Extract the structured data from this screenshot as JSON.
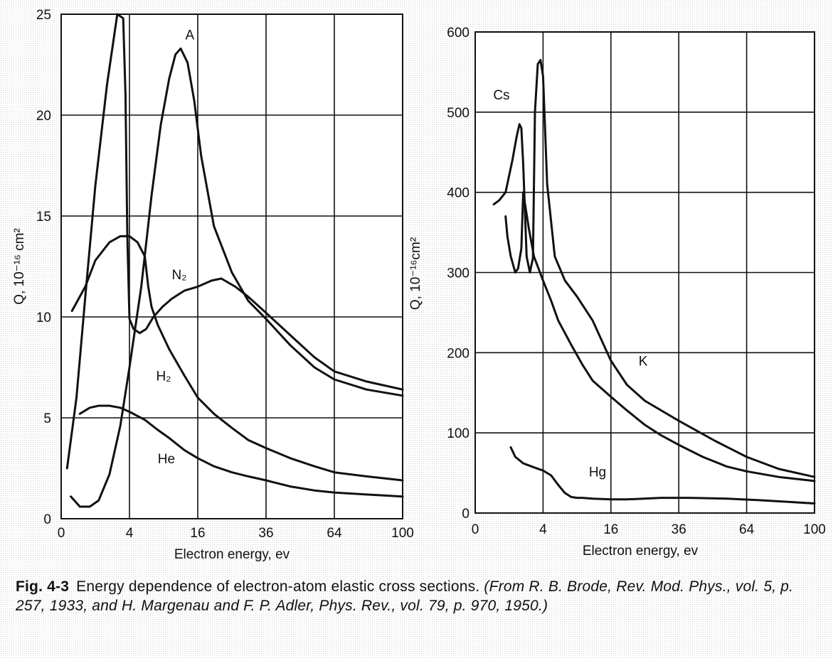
{
  "caption": {
    "number": "Fig. 4-3",
    "text": "Energy dependence of electron-atom elastic cross sections.",
    "source": "(From R. B. Brode, Rev. Mod. Phys., vol. 5, p. 257, 1933, and H. Margenau and F. P. Adler, Phys. Rev., vol. 79, p. 970, 1950.)"
  },
  "chart_data": [
    {
      "type": "line",
      "xlabel": "Electron energy, ev",
      "ylabel": "Q, 10⁻¹⁶ cm²",
      "xscale": "sqrt",
      "xlim": [
        0,
        100
      ],
      "ylim": [
        0,
        25
      ],
      "xticks": [
        0,
        4,
        16,
        36,
        64,
        100
      ],
      "xtick_labels": [
        "0",
        "4",
        "16",
        "36",
        "64",
        "100"
      ],
      "yticks": [
        0,
        5,
        10,
        15,
        20,
        25
      ],
      "ytick_labels": [
        "0",
        "5",
        "10",
        "15",
        "20",
        "25"
      ],
      "grid": true,
      "series": [
        {
          "name": "A",
          "label_at": [
            14.2,
            24.0
          ],
          "x": [
            0.08,
            0.3,
            0.7,
            1.2,
            2.0,
            3.0,
            4.0,
            5.5,
            7.0,
            8.5,
            10.0,
            11.2,
            12.25,
            13.7,
            15.2,
            16.8,
            20.0,
            25.0,
            30.0,
            36.0,
            45.0,
            55.0,
            64.0,
            80.0,
            100.0
          ],
          "y": [
            1.1,
            0.6,
            0.6,
            0.9,
            2.2,
            4.6,
            7.5,
            11.5,
            16.0,
            19.5,
            21.8,
            23.0,
            23.3,
            22.6,
            20.7,
            18.0,
            14.5,
            12.2,
            10.8,
            9.9,
            8.6,
            7.5,
            6.9,
            6.4,
            6.1
          ]
        },
        {
          "name": "N₂",
          "x": [
            0.03,
            0.2,
            0.5,
            1.0,
            1.8,
            2.7,
            3.3,
            3.55,
            3.75,
            4.0,
            4.5,
            5.3,
            6.2,
            7.3,
            8.8,
            10.5,
            13.0,
            16.0,
            19.4,
            22.0,
            26.0,
            30.0,
            36.0,
            45.0,
            55.0,
            64.0,
            80.0,
            100.0
          ],
          "y": [
            2.5,
            6.0,
            11.0,
            16.5,
            21.5,
            25.0,
            24.8,
            21.0,
            14.0,
            9.9,
            9.4,
            9.2,
            9.4,
            10.0,
            10.5,
            10.9,
            11.3,
            11.5,
            11.8,
            11.9,
            11.5,
            11.0,
            10.2,
            9.1,
            8.0,
            7.3,
            6.8,
            6.4
          ]
        },
        {
          "name": "H₂",
          "label_at": [
            9.0,
            7.1
          ],
          "x": [
            0.1,
            0.5,
            1.0,
            2.0,
            3.0,
            4.0,
            5.0,
            6.0,
            6.5,
            7.0,
            8.0,
            10.0,
            13.0,
            16.0,
            20.0,
            25.0,
            30.0,
            36.0,
            45.0,
            55.0,
            64.0,
            80.0,
            100.0
          ],
          "y": [
            10.3,
            11.5,
            12.8,
            13.7,
            14.0,
            14.0,
            13.7,
            13.0,
            11.5,
            10.5,
            9.6,
            8.4,
            7.1,
            6.0,
            5.2,
            4.5,
            3.9,
            3.5,
            3.0,
            2.6,
            2.3,
            2.1,
            1.9
          ]
        },
        {
          "name": "He",
          "label_at": [
            9.5,
            3.0
          ],
          "x": [
            0.3,
            0.7,
            1.2,
            2.0,
            3.0,
            4.0,
            6.0,
            8.0,
            10.0,
            13.0,
            16.0,
            20.0,
            25.0,
            30.0,
            36.0,
            45.0,
            55.0,
            64.0,
            80.0,
            100.0
          ],
          "y": [
            5.2,
            5.5,
            5.6,
            5.6,
            5.5,
            5.3,
            4.9,
            4.4,
            4.0,
            3.4,
            3.0,
            2.6,
            2.3,
            2.1,
            1.9,
            1.6,
            1.4,
            1.3,
            1.2,
            1.1
          ]
        }
      ]
    },
    {
      "type": "line",
      "xlabel": "Electron energy, ev",
      "ylabel": "Q, 10⁻¹⁶cm²",
      "xscale": "sqrt",
      "xlim": [
        0,
        100
      ],
      "ylim": [
        0,
        600
      ],
      "xticks": [
        0,
        4,
        16,
        36,
        64,
        100
      ],
      "xtick_labels": [
        "0",
        "4",
        "16",
        "36",
        "64",
        "100"
      ],
      "yticks": [
        0,
        100,
        200,
        300,
        400,
        500,
        600
      ],
      "ytick_labels": [
        "0",
        "100",
        "200",
        "300",
        "400",
        "500",
        "600"
      ],
      "grid": true,
      "series": [
        {
          "name": "Cs",
          "label_at": [
            0.6,
            522
          ],
          "x": [
            0.3,
            0.5,
            0.8,
            1.2,
            1.5,
            1.7,
            1.85,
            2.0,
            2.3,
            2.6,
            2.9,
            3.1,
            3.4,
            3.7,
            4.0,
            4.5,
            5.5,
            7.0,
            9.0,
            12.0,
            16.0,
            20.0,
            25.0,
            36.0,
            50.0,
            64.0,
            80.0,
            100.0
          ],
          "y": [
            385,
            390,
            400,
            440,
            470,
            485,
            480,
            435,
            320,
            300,
            318,
            500,
            560,
            565,
            545,
            410,
            320,
            290,
            270,
            240,
            190,
            160,
            140,
            115,
            90,
            70,
            55,
            45
          ]
        },
        {
          "name": "K",
          "label_at": [
            24.5,
            190
          ],
          "x": [
            0.8,
            0.9,
            1.1,
            1.4,
            1.6,
            1.85,
            2.0,
            2.5,
            3.0,
            4.0,
            5.0,
            6.0,
            8.0,
            10.0,
            12.0,
            16.0,
            20.0,
            25.0,
            30.0,
            36.0,
            45.0,
            55.0,
            64.0,
            80.0,
            100.0
          ],
          "y": [
            370,
            345,
            320,
            300,
            305,
            330,
            400,
            355,
            320,
            290,
            265,
            240,
            210,
            185,
            165,
            145,
            128,
            110,
            97,
            85,
            70,
            58,
            52,
            45,
            40
          ]
        },
        {
          "name": "Hg",
          "label_at": [
            13.0,
            52
          ],
          "x": [
            1.1,
            1.4,
            2.0,
            3.0,
            4.0,
            5.0,
            6.0,
            7.0,
            8.0,
            9.0,
            10.0,
            12.0,
            16.0,
            20.0,
            30.0,
            40.0,
            55.0,
            70.0,
            85.0,
            100.0
          ],
          "y": [
            82,
            70,
            62,
            57,
            53,
            47,
            35,
            25,
            20,
            19,
            19,
            18,
            17,
            17,
            19,
            19,
            18,
            16,
            14,
            12
          ]
        }
      ]
    }
  ]
}
